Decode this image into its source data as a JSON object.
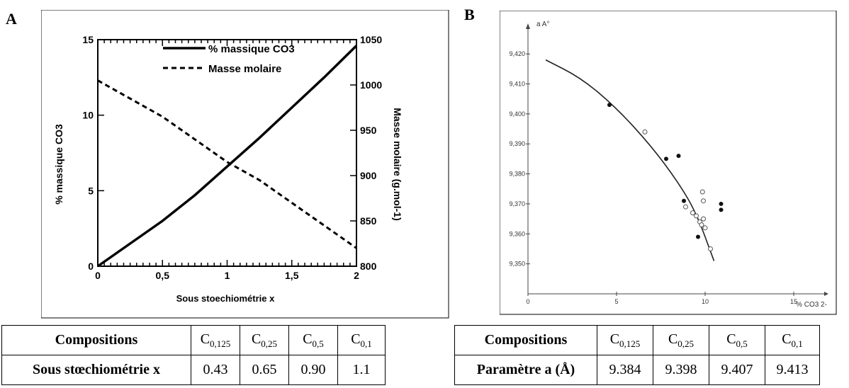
{
  "figure": {
    "panel_a_label": "A",
    "panel_b_label": "B"
  },
  "chart_data": [
    {
      "panel": "A",
      "type": "line",
      "title": "",
      "xlabel": "Sous stoechiométrie x",
      "ylabel_left": "% massique CO3",
      "ylabel_right": "Masse molaire (g.mol-1)",
      "xlim": [
        0,
        2
      ],
      "ylim_left": [
        0,
        15
      ],
      "ylim_right": [
        800,
        1050
      ],
      "x_ticks": [
        "0",
        "0,5",
        "1",
        "1,5",
        "2"
      ],
      "y_left_ticks": [
        "0",
        "5",
        "10",
        "15"
      ],
      "y_right_ticks": [
        "800",
        "850",
        "900",
        "950",
        "1000",
        "1050"
      ],
      "legend_position": "top-center",
      "series": [
        {
          "name": "% massique CO3",
          "axis": "left",
          "style": "solid",
          "x": [
            0,
            0.25,
            0.5,
            0.75,
            1.0,
            1.25,
            1.5,
            1.75,
            2.0
          ],
          "values": [
            0,
            1.5,
            3.0,
            4.7,
            6.6,
            8.5,
            10.5,
            12.5,
            14.6
          ]
        },
        {
          "name": "Masse molaire",
          "axis": "right",
          "style": "dashed",
          "x": [
            0,
            0.25,
            0.5,
            0.75,
            1.0,
            1.25,
            1.5,
            1.75,
            2.0
          ],
          "values": [
            1005,
            985,
            965,
            940,
            915,
            895,
            870,
            845,
            820
          ]
        }
      ]
    },
    {
      "panel": "B",
      "type": "scatter",
      "title": "",
      "ylabel": "a A°",
      "xlabel": "% CO3 2-",
      "xlim": [
        0,
        16
      ],
      "ylim": [
        9.34,
        9.425
      ],
      "x_ticks": [
        "0",
        "5",
        "10",
        "15"
      ],
      "y_ticks": [
        "9,350",
        "9,360",
        "9,370",
        "9,380",
        "9,390",
        "9,400",
        "9,410",
        "9,420"
      ],
      "filled_points": [
        {
          "x": 4.6,
          "y": 9.403
        },
        {
          "x": 7.8,
          "y": 9.385
        },
        {
          "x": 8.5,
          "y": 9.386
        },
        {
          "x": 8.8,
          "y": 9.371
        },
        {
          "x": 9.6,
          "y": 9.359
        },
        {
          "x": 10.9,
          "y": 9.37
        },
        {
          "x": 10.9,
          "y": 9.368
        }
      ],
      "open_points": [
        {
          "x": 6.6,
          "y": 9.394
        },
        {
          "x": 8.9,
          "y": 9.369
        },
        {
          "x": 9.3,
          "y": 9.367
        },
        {
          "x": 9.5,
          "y": 9.366
        },
        {
          "x": 9.7,
          "y": 9.364
        },
        {
          "x": 9.8,
          "y": 9.363
        },
        {
          "x": 9.9,
          "y": 9.365
        },
        {
          "x": 9.85,
          "y": 9.374
        },
        {
          "x": 9.9,
          "y": 9.371
        },
        {
          "x": 10.0,
          "y": 9.362
        },
        {
          "x": 10.3,
          "y": 9.355
        }
      ],
      "fit_curve": [
        {
          "x": 1.0,
          "y": 9.418
        },
        {
          "x": 3.0,
          "y": 9.412
        },
        {
          "x": 5.0,
          "y": 9.402
        },
        {
          "x": 7.0,
          "y": 9.389
        },
        {
          "x": 8.5,
          "y": 9.377
        },
        {
          "x": 9.5,
          "y": 9.367
        },
        {
          "x": 10.5,
          "y": 9.351
        }
      ]
    }
  ],
  "table_a": {
    "row1_label": "Compositions",
    "row2_label": "Sous stœchiométrie x",
    "columns": [
      {
        "base": "C",
        "sub": "0,125",
        "value": "0.43"
      },
      {
        "base": "C",
        "sub": "0,25",
        "value": "0.65"
      },
      {
        "base": "C",
        "sub": "0,5",
        "value": "0.90"
      },
      {
        "base": "C",
        "sub": "0,1",
        "value": "1.1"
      }
    ]
  },
  "table_b": {
    "row1_label": "Compositions",
    "row2_label": "Paramètre a (Å)",
    "columns": [
      {
        "base": "C",
        "sub": "0,125",
        "value": "9.384"
      },
      {
        "base": "C",
        "sub": "0,25",
        "value": "9.398"
      },
      {
        "base": "C",
        "sub": "0,5",
        "value": "9.407"
      },
      {
        "base": "C",
        "sub": "0,1",
        "value": "9.413"
      }
    ]
  }
}
